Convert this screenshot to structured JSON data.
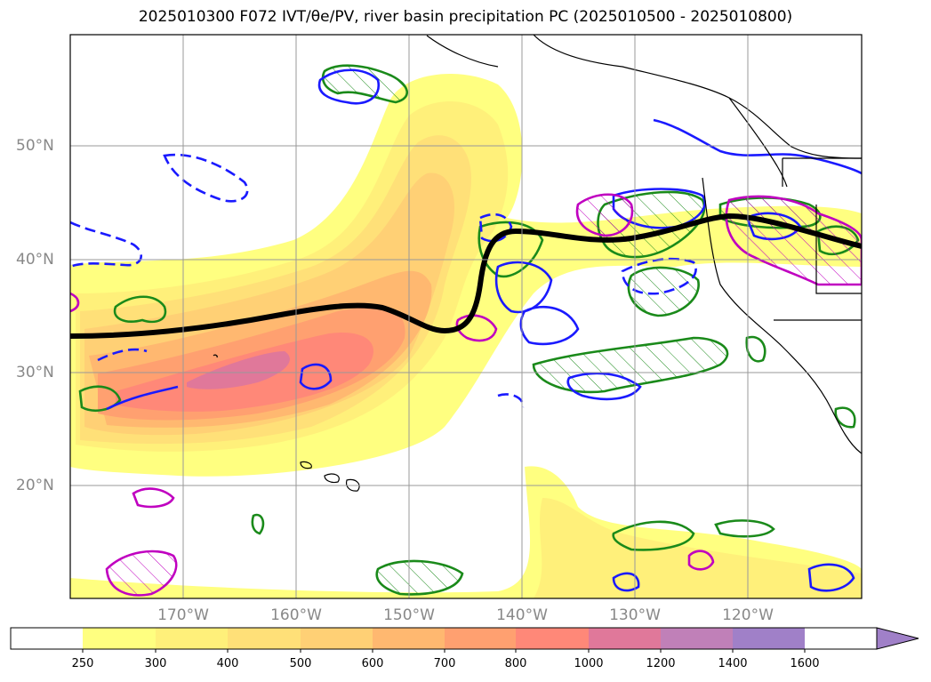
{
  "title": "2025010300 F072 IVT/θe/PV, river basin precipitation PC (2025010500 - 2025010800)",
  "map": {
    "lat_labels": [
      "50°N",
      "40°N",
      "30°N",
      "20°N"
    ],
    "lon_labels": [
      "170°W",
      "160°W",
      "150°W",
      "140°W",
      "130°W",
      "120°W"
    ],
    "contour_colors": {
      "precip_pc": "#1a8a1a",
      "theta_e": "#1a1aff",
      "pv": "#c000c0",
      "jet_line": "#000000"
    }
  },
  "colorbar": {
    "levels": [
      "250",
      "300",
      "400",
      "500",
      "600",
      "700",
      "800",
      "1000",
      "1200",
      "1400",
      "1600"
    ],
    "colors": [
      "#ffffff",
      "#ffff80",
      "#fff07a",
      "#ffe078",
      "#ffd075",
      "#ffb870",
      "#ffa070",
      "#ff8878",
      "#e0789a",
      "#c080b8",
      "#a080c8"
    ]
  }
}
